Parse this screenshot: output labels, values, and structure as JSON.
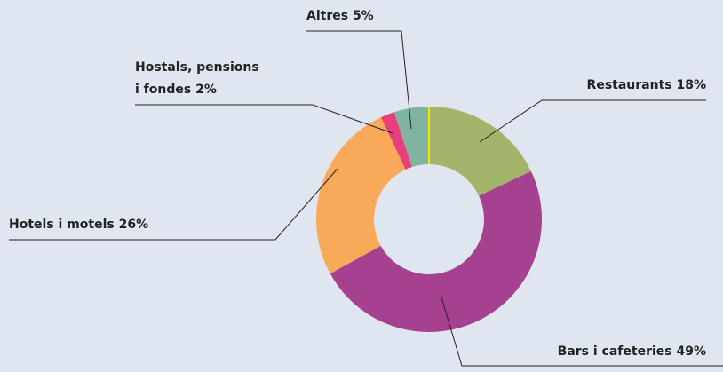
{
  "chart_data": {
    "type": "donut",
    "categories": [
      "Restaurants",
      "Bars i cafeteries",
      "Hotels i motels",
      "Hostals, pensions i fondes",
      "Altres"
    ],
    "values": [
      18,
      49,
      26,
      2,
      5
    ],
    "value_labels": [
      "18%",
      "49%",
      "26%",
      "2%",
      "5%"
    ],
    "colors": [
      "#a3b56b",
      "#a5418f",
      "#f8a95a",
      "#e83e7c",
      "#7fb5a0"
    ]
  }
}
